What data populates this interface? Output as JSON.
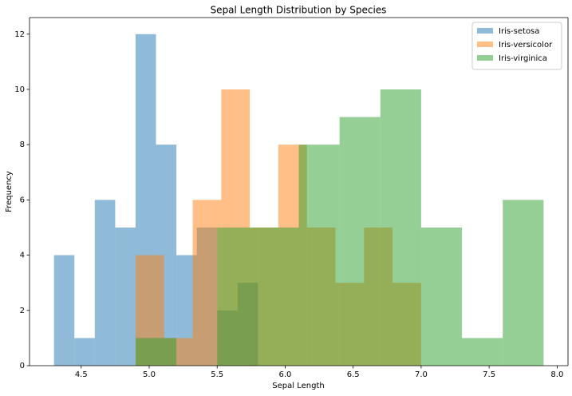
{
  "chart_data": {
    "type": "histogram",
    "title": "Sepal Length Distribution by Species",
    "xlabel": "Sepal Length",
    "ylabel": "Frequency",
    "alpha": 0.5,
    "series": [
      {
        "name": "Iris-setosa",
        "color": "#1f77b4",
        "bins": [
          4.3,
          4.45,
          4.6,
          4.75,
          4.9,
          5.05,
          5.2,
          5.35,
          5.5,
          5.65,
          5.8
        ],
        "values": [
          4,
          1,
          6,
          5,
          12,
          8,
          4,
          5,
          2,
          3
        ]
      },
      {
        "name": "Iris-versicolor",
        "color": "#ff7f0e",
        "bins": [
          4.9,
          5.11,
          5.32,
          5.53,
          5.74,
          5.95,
          6.16,
          6.37,
          6.58,
          6.79,
          7.0
        ],
        "values": [
          4,
          1,
          6,
          10,
          5,
          8,
          5,
          3,
          5,
          3
        ]
      },
      {
        "name": "Iris-virginica",
        "color": "#2ca02c",
        "bins": [
          4.9,
          5.2,
          5.5,
          5.8,
          6.1,
          6.4,
          6.7,
          7.0,
          7.3,
          7.6,
          7.9
        ],
        "values": [
          1,
          0,
          5,
          5,
          8,
          9,
          10,
          5,
          1,
          6
        ]
      }
    ],
    "xlim": [
      4.12,
      8.08
    ],
    "ylim": [
      0,
      12.6
    ],
    "xticks": [
      4.5,
      {
        "value": 5,
        "label": "5.0"
      },
      5.5,
      {
        "value": 6,
        "label": "6.0"
      },
      6.5,
      {
        "value": 7,
        "label": "7.0"
      },
      7.5,
      {
        "value": 8,
        "label": "8.0"
      }
    ],
    "yticks": [
      0,
      2,
      4,
      6,
      8,
      10,
      12
    ],
    "legend": "upper right",
    "grid": false
  }
}
